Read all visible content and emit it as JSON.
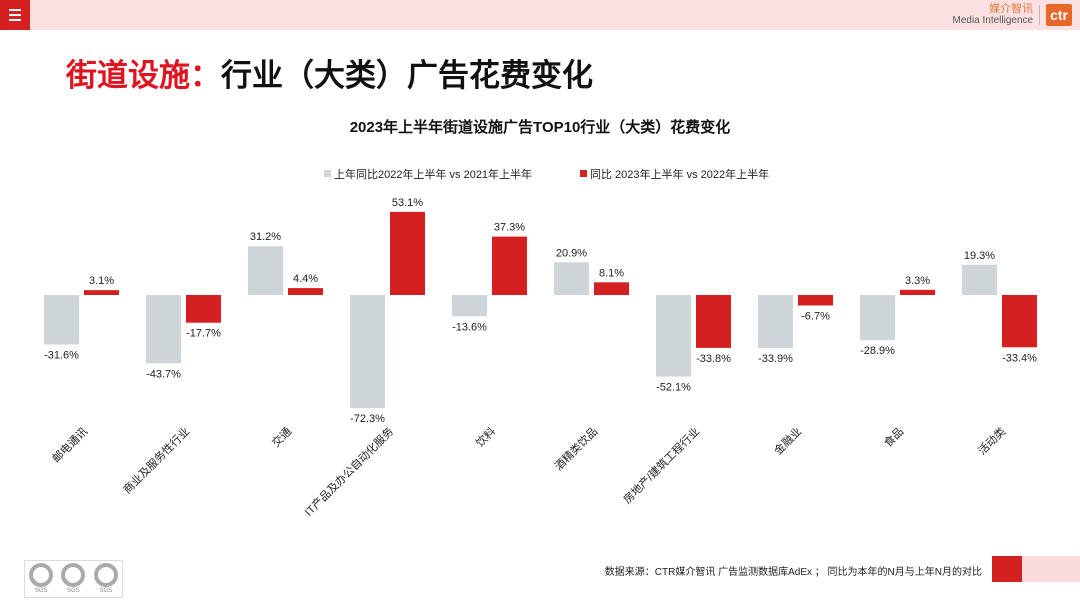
{
  "header": {
    "logo_cn": "媒介智讯",
    "logo_en": "Media Intelligence",
    "logo_mark": "ctr",
    "menu_icon": "menu-icon"
  },
  "headline": {
    "red": "街道设施：",
    "black": "行业（大类）广告花费变化"
  },
  "colors": {
    "accent": "#d42020",
    "grey_series": "#cfd6d9",
    "red_series": "#d42020"
  },
  "chart_data": {
    "type": "bar",
    "title": "2023年上半年街道设施广告TOP10行业（大类）花费变化",
    "categories": [
      "邮电通讯",
      "商业及服务性行业",
      "交通",
      "IT产品及办公自动化服务",
      "饮料",
      "酒精类饮品",
      "房地产/建筑工程行业",
      "金融业",
      "食品",
      "活动类"
    ],
    "series": [
      {
        "name": "上年同比2022年上半年  vs  2021年上半年",
        "values": [
          -31.6,
          -43.7,
          31.2,
          -72.3,
          -13.6,
          20.9,
          -52.1,
          -33.9,
          -28.9,
          19.3
        ],
        "labels": [
          "-31.6%",
          "-43.7%",
          "31.2%",
          "-72.3%",
          "-13.6%",
          "20.9%",
          "-52.1%",
          "-33.9%",
          "-28.9%",
          "19.3%"
        ]
      },
      {
        "name": "同比 2023年上半年  vs  2022年上半年",
        "values": [
          3.1,
          -17.7,
          4.4,
          53.1,
          37.3,
          8.1,
          -33.8,
          -6.7,
          3.3,
          -33.4
        ],
        "labels": [
          "3.1%",
          "-17.7%",
          "4.4%",
          "53.1%",
          "37.3%",
          "8.1%",
          "-33.8%",
          "-6.7%",
          "3.3%",
          "-33.4%"
        ]
      }
    ],
    "unit": "%",
    "legend": "top"
  },
  "footer": {
    "source": "数据来源：CTR媒介智讯 广告监测数据库AdEx ；  同比为本年的N月与上年N月的对比",
    "badges": "SGS"
  }
}
